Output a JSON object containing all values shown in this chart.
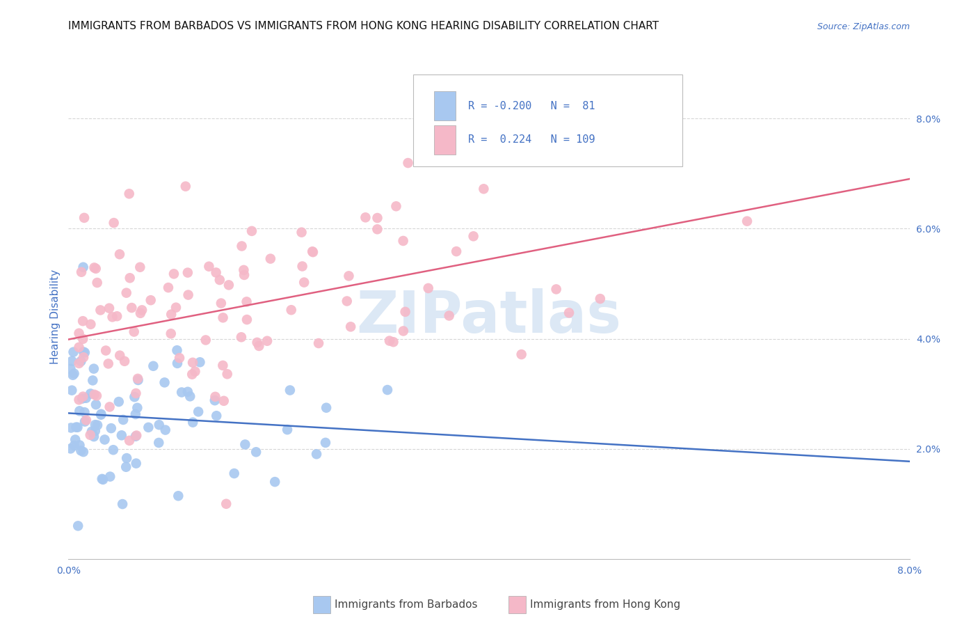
{
  "title": "IMMIGRANTS FROM BARBADOS VS IMMIGRANTS FROM HONG KONG HEARING DISABILITY CORRELATION CHART",
  "source": "Source: ZipAtlas.com",
  "xlabel_barbados": "Immigrants from Barbados",
  "xlabel_hong_kong": "Immigrants from Hong Kong",
  "ylabel": "Hearing Disability",
  "xlim": [
    0.0,
    0.08
  ],
  "ylim": [
    0.0,
    0.088
  ],
  "R_barbados": -0.2,
  "N_barbados": 81,
  "R_hong_kong": 0.224,
  "N_hong_kong": 109,
  "color_barbados": "#a8c8f0",
  "color_hong_kong": "#f5b8c8",
  "line_color_barbados": "#4472c4",
  "line_color_hong_kong": "#e06080",
  "watermark": "ZIPatlas",
  "watermark_color": "#dce8f5",
  "background_color": "#ffffff",
  "legend_text_color": "#4472c4",
  "title_fontsize": 11,
  "axis_label_fontsize": 11,
  "tick_fontsize": 10,
  "source_fontsize": 9,
  "grid_color": "#cccccc",
  "grid_linestyle": "--",
  "grid_alpha": 0.8
}
